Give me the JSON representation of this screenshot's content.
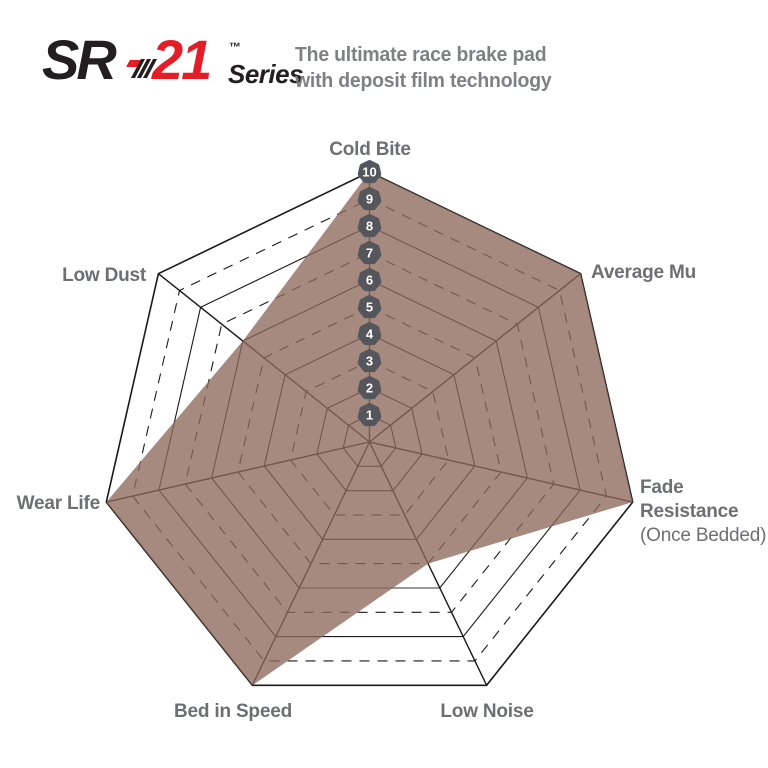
{
  "header": {
    "logo": {
      "sr": "SR",
      "model": "21",
      "trademark": "™",
      "series": "Series"
    },
    "tagline_line1": "The ultimate race brake pad",
    "tagline_line2": "with deposit film technology"
  },
  "chart_data": {
    "type": "radar",
    "shape": "heptagon",
    "categories": [
      "Cold Bite",
      "Average Mu",
      "Fade Resistance (Once Bedded)",
      "Low Noise",
      "Bed in Speed",
      "Wear Life",
      "Low Dust"
    ],
    "values": [
      10,
      10,
      10,
      5,
      10,
      10,
      6
    ],
    "scale": {
      "min": 0,
      "max": 10,
      "ticks": [
        1,
        2,
        3,
        4,
        5,
        6,
        7,
        8,
        9,
        10
      ]
    },
    "grid": {
      "rings": 10,
      "dashed_rings": [
        3,
        5,
        7,
        9
      ],
      "gray_segment": {
        "ring": 6,
        "from_axis": 3,
        "to_axis": 4
      }
    },
    "axis_display_labels": {
      "cold_bite": "Cold Bite",
      "average_mu": "Average Mu",
      "fade_line1": "Fade",
      "fade_line2": "Resistance",
      "fade_line3": "(Once Bedded)",
      "low_noise": "Low Noise",
      "bed_in_speed": "Bed in Speed",
      "wear_life": "Wear Life",
      "low_dust": "Low Dust"
    },
    "legend": null,
    "colors": {
      "fill": "rgba(141,105,91,0.78)",
      "grid_line": "#1a1a1a",
      "gray_segment_line": "#9a9a9a",
      "tick_badge": "#55565b",
      "tick_text": "#ffffff",
      "axis_label": "#6e6f72"
    }
  },
  "colors": {
    "brand_red": "#e31e26",
    "logo_black": "#231f20",
    "tagline_gray": "#7e8083"
  }
}
